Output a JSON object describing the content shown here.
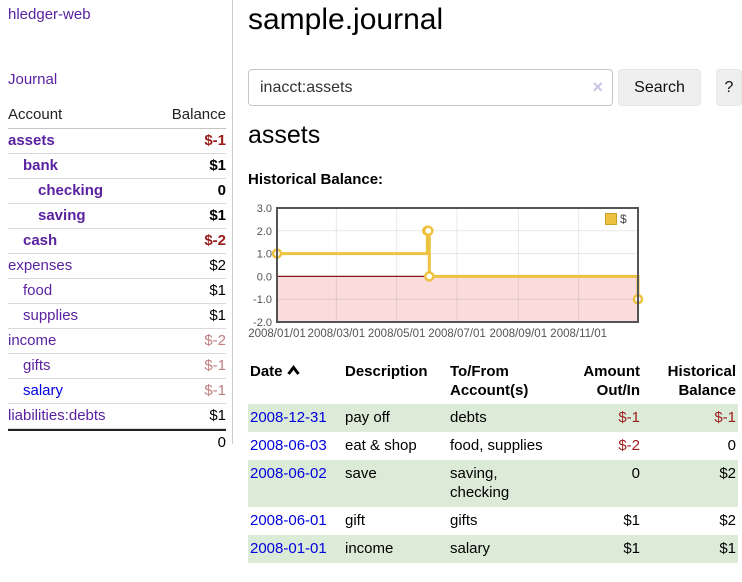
{
  "brand": {
    "label": "hledger-web"
  },
  "sidebar": {
    "nav_link": "Journal",
    "accounts": {
      "col_account": "Account",
      "col_balance": "Balance",
      "rows": [
        {
          "name": "assets",
          "indent": 0,
          "bold": true,
          "balance": "$-1",
          "balance_style": "neg"
        },
        {
          "name": "bank",
          "indent": 1,
          "bold": true,
          "balance": "$1",
          "balance_style": "pos"
        },
        {
          "name": "checking",
          "indent": 2,
          "bold": true,
          "balance": "0",
          "balance_style": "pos"
        },
        {
          "name": "saving",
          "indent": 2,
          "bold": true,
          "balance": "$1",
          "balance_style": "pos"
        },
        {
          "name": "cash",
          "indent": 1,
          "bold": true,
          "balance": "$-2",
          "balance_style": "neg"
        },
        {
          "name": "expenses",
          "indent": 0,
          "bold": false,
          "balance": "$2",
          "balance_style": "pos"
        },
        {
          "name": "food",
          "indent": 1,
          "bold": false,
          "balance": "$1",
          "balance_style": "pos"
        },
        {
          "name": "supplies",
          "indent": 1,
          "bold": false,
          "balance": "$1",
          "balance_style": "pos"
        },
        {
          "name": "income",
          "indent": 0,
          "bold": false,
          "balance": "$-2",
          "balance_style": "neg-muted"
        },
        {
          "name": "gifts",
          "indent": 1,
          "bold": false,
          "balance": "$-1",
          "balance_style": "neg-muted"
        },
        {
          "name": "salary",
          "indent": 1,
          "bold": false,
          "balance": "$-1",
          "balance_style": "neg-muted",
          "link_style": "blue"
        },
        {
          "name": "liabilities:debts",
          "indent": 0,
          "bold": false,
          "balance": "$1",
          "balance_style": "pos"
        }
      ],
      "total": "0"
    }
  },
  "main": {
    "title": "sample.journal",
    "search": {
      "value": "inacct:assets",
      "clear_icon": "×",
      "search_button": "Search",
      "help_button": "?"
    },
    "account_heading": "assets",
    "chart_title": "Historical Balance:"
  },
  "chart_data": {
    "type": "line",
    "style": "step",
    "title": "Historical Balance",
    "series": [
      {
        "name": "$",
        "color": "#edc240",
        "points": [
          {
            "date": "2008-01-01",
            "value": 1
          },
          {
            "date": "2008-06-01",
            "value": 2
          },
          {
            "date": "2008-06-02",
            "value": 2
          },
          {
            "date": "2008-06-03",
            "value": 0
          },
          {
            "date": "2008-12-31",
            "value": -1
          }
        ]
      }
    ],
    "x_axis": {
      "range": [
        "2008-01-01",
        "2008-12-31"
      ],
      "tick_labels": [
        "2008/01/01",
        "2008/03/01",
        "2008/05/01",
        "2008/07/01",
        "2008/09/01",
        "2008/11/01"
      ]
    },
    "y_axis": {
      "range": [
        -2,
        3
      ],
      "tick_labels": [
        "3.0",
        "2.0",
        "1.0",
        "0.0",
        "-1.0",
        "-2.0"
      ]
    },
    "legend": {
      "position": "top-right",
      "entries": [
        {
          "label": "$",
          "color": "#edc240"
        }
      ]
    },
    "negative_region": {
      "fill": "#fbdcdc",
      "zero_line_color": "#8b1717"
    },
    "grid": true
  },
  "register": {
    "columns": [
      {
        "lines": [
          "Date"
        ],
        "align": "left",
        "sorted": "asc"
      },
      {
        "lines": [
          "Description"
        ],
        "align": "left"
      },
      {
        "lines": [
          "To/From",
          "Account(s)"
        ],
        "align": "left"
      },
      {
        "lines": [
          "Amount",
          "Out/In"
        ],
        "align": "right"
      },
      {
        "lines": [
          "Historical",
          "Balance"
        ],
        "align": "right"
      }
    ],
    "rows": [
      {
        "date": "2008-12-31",
        "description": "pay off",
        "accounts_lines": [
          "debts"
        ],
        "amount": "$-1",
        "amount_negative": true,
        "balance": "$-1",
        "balance_negative": true
      },
      {
        "date": "2008-06-03",
        "description": "eat & shop",
        "accounts_lines": [
          "food, supplies"
        ],
        "amount": "$-2",
        "amount_negative": true,
        "balance": "0",
        "balance_negative": false
      },
      {
        "date": "2008-06-02",
        "description": "save",
        "accounts_lines": [
          "saving,",
          "checking"
        ],
        "amount": "0",
        "amount_negative": false,
        "balance": "$2",
        "balance_negative": false
      },
      {
        "date": "2008-06-01",
        "description": "gift",
        "accounts_lines": [
          "gifts"
        ],
        "amount": "$1",
        "amount_negative": false,
        "balance": "$2",
        "balance_negative": false
      },
      {
        "date": "2008-01-01",
        "description": "income",
        "accounts_lines": [
          "salary"
        ],
        "amount": "$1",
        "amount_negative": false,
        "balance": "$1",
        "balance_negative": false
      }
    ]
  }
}
